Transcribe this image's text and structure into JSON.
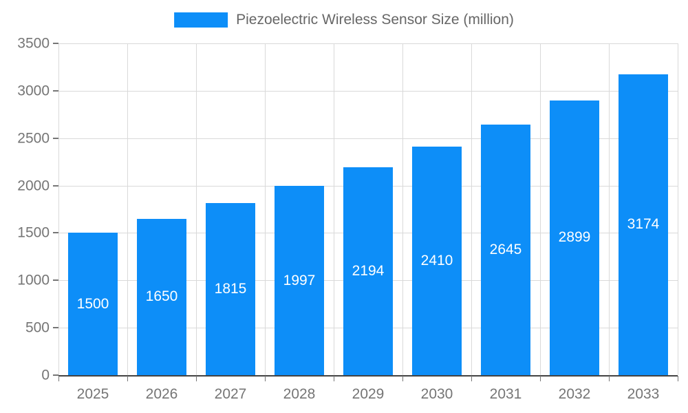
{
  "chart_data": {
    "type": "bar",
    "title": "Piezoelectric Wireless Sensor Size (million)",
    "categories": [
      "2025",
      "2026",
      "2027",
      "2028",
      "2029",
      "2030",
      "2031",
      "2032",
      "2033"
    ],
    "values": [
      1500,
      1650,
      1815,
      1997,
      2194,
      2410,
      2645,
      2899,
      3174
    ],
    "xlabel": "",
    "ylabel": "",
    "ylim": [
      0,
      3500
    ],
    "yticks": [
      0,
      500,
      1000,
      1500,
      2000,
      2500,
      3000,
      3500
    ],
    "grid": true,
    "legend_position": "top-center",
    "value_labels": "inside-center",
    "colors": {
      "bar": "#0d8ef8",
      "bar_label_text": "#ffffff",
      "axis_text": "#757575",
      "grid_line": "#d9d9d9",
      "axis_line": "#424242",
      "legend_text": "#666666",
      "background": "#ffffff"
    }
  }
}
